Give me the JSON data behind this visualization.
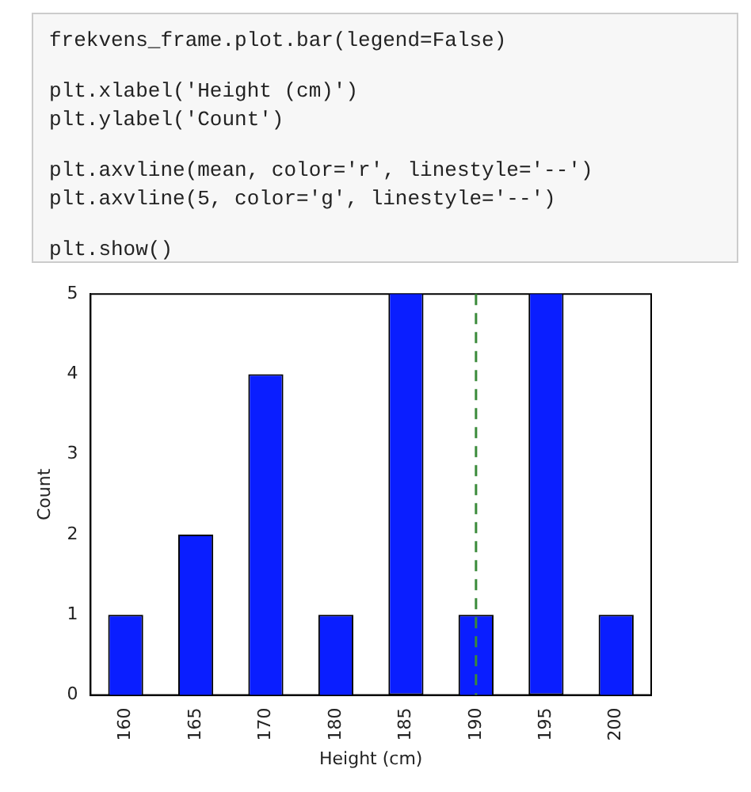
{
  "chart_data": {
    "type": "bar",
    "annotations": [
      "frekvens_frame.plot.bar(legend=False)",
      "plt.xlabel('Height (cm)')\nplt.ylabel('Count')",
      "plt.axvline(mean, color='r', linestyle='--')\nplt.axvline(5, color='g', linestyle='--')",
      "plt.show()"
    ],
    "xlabel": "Height (cm)",
    "ylabel": "Count",
    "categories": [
      "160",
      "165",
      "170",
      "180",
      "185",
      "190",
      "195",
      "200"
    ],
    "values": [
      1,
      2,
      4,
      1,
      5,
      1,
      5,
      1
    ],
    "color": "#0a1eff",
    "ylim": [
      0,
      5
    ],
    "yticks": [
      0,
      1,
      2,
      3,
      4,
      5
    ],
    "grid": false,
    "legend": false,
    "ref_lines": [
      {
        "axis": "x",
        "value": "190",
        "color": "#3a8a3a",
        "line_style": "dashed"
      }
    ]
  }
}
